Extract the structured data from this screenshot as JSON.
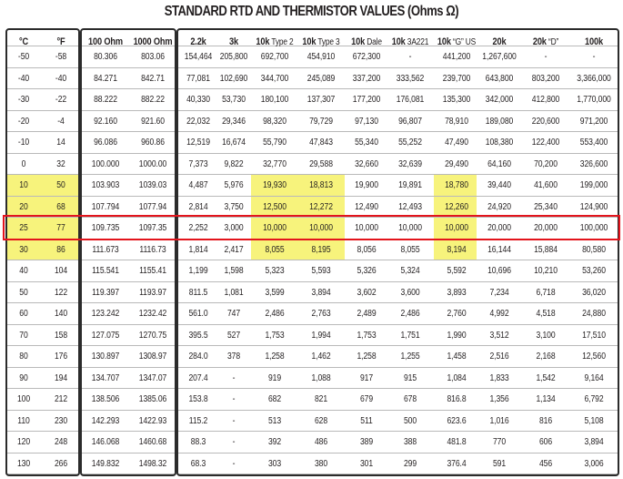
{
  "title": "STANDARD RTD AND THERMISTOR VALUES (Ohms Ω)",
  "columns": [
    {
      "bold": "°C",
      "thin": ""
    },
    {
      "bold": "°F",
      "thin": ""
    },
    {
      "bold": "100 Ohm",
      "thin": ""
    },
    {
      "bold": "1000 Ohm",
      "thin": ""
    },
    {
      "bold": "2.2k",
      "thin": ""
    },
    {
      "bold": "3k",
      "thin": ""
    },
    {
      "bold": "10k",
      "thin": "Type 2"
    },
    {
      "bold": "10k",
      "thin": "Type 3"
    },
    {
      "bold": "10k",
      "thin": "Dale"
    },
    {
      "bold": "10k",
      "thin": "3A221"
    },
    {
      "bold": "10k",
      "thin": "“G” US"
    },
    {
      "bold": "20k",
      "thin": ""
    },
    {
      "bold": "20k",
      "thin": "“D”"
    },
    {
      "bold": "100k",
      "thin": ""
    }
  ],
  "rows": [
    [
      "-50",
      "-58",
      "80.306",
      "803.06",
      "154,464",
      "205,800",
      "692,700",
      "454,910",
      "672,300",
      "-",
      "441,200",
      "1,267,600",
      "-",
      "-"
    ],
    [
      "-40",
      "-40",
      "84.271",
      "842.71",
      "77,081",
      "102,690",
      "344,700",
      "245,089",
      "337,200",
      "333,562",
      "239,700",
      "643,800",
      "803,200",
      "3,366,000"
    ],
    [
      "-30",
      "-22",
      "88.222",
      "882.22",
      "40,330",
      "53,730",
      "180,100",
      "137,307",
      "177,200",
      "176,081",
      "135,300",
      "342,000",
      "412,800",
      "1,770,000"
    ],
    [
      "-20",
      "-4",
      "92.160",
      "921.60",
      "22,032",
      "29,346",
      "98,320",
      "79,729",
      "97,130",
      "96,807",
      "78,910",
      "189,080",
      "220,600",
      "971,200"
    ],
    [
      "-10",
      "14",
      "96.086",
      "960.86",
      "12,519",
      "16,674",
      "55,790",
      "47,843",
      "55,340",
      "55,252",
      "47,490",
      "108,380",
      "122,400",
      "553,400"
    ],
    [
      "0",
      "32",
      "100.000",
      "1000.00",
      "7,373",
      "9,822",
      "32,770",
      "29,588",
      "32,660",
      "32,639",
      "29,490",
      "64,160",
      "70,200",
      "326,600"
    ],
    [
      "10",
      "50",
      "103.903",
      "1039.03",
      "4,487",
      "5,976",
      "19,930",
      "18,813",
      "19,900",
      "19,891",
      "18,780",
      "39,440",
      "41,600",
      "199,000"
    ],
    [
      "20",
      "68",
      "107.794",
      "1077.94",
      "2,814",
      "3,750",
      "12,500",
      "12,272",
      "12,490",
      "12,493",
      "12,260",
      "24,920",
      "25,340",
      "124,900"
    ],
    [
      "25",
      "77",
      "109.735",
      "1097.35",
      "2,252",
      "3,000",
      "10,000",
      "10,000",
      "10,000",
      "10,000",
      "10,000",
      "20,000",
      "20,000",
      "100,000"
    ],
    [
      "30",
      "86",
      "111.673",
      "1116.73",
      "1,814",
      "2,417",
      "8,055",
      "8,195",
      "8,056",
      "8,055",
      "8,194",
      "16,144",
      "15,884",
      "80,580"
    ],
    [
      "40",
      "104",
      "115.541",
      "1155.41",
      "1,199",
      "1,598",
      "5,323",
      "5,593",
      "5,326",
      "5,324",
      "5,592",
      "10,696",
      "10,210",
      "53,260"
    ],
    [
      "50",
      "122",
      "119.397",
      "1193.97",
      "811.5",
      "1,081",
      "3,599",
      "3,894",
      "3,602",
      "3,600",
      "3,893",
      "7,234",
      "6,718",
      "36,020"
    ],
    [
      "60",
      "140",
      "123.242",
      "1232.42",
      "561.0",
      "747",
      "2,486",
      "2,763",
      "2,489",
      "2,486",
      "2,760",
      "4,992",
      "4,518",
      "24,880"
    ],
    [
      "70",
      "158",
      "127.075",
      "1270.75",
      "395.5",
      "527",
      "1,753",
      "1,994",
      "1,753",
      "1,751",
      "1,990",
      "3,512",
      "3,100",
      "17,510"
    ],
    [
      "80",
      "176",
      "130.897",
      "1308.97",
      "284.0",
      "378",
      "1,258",
      "1,462",
      "1,258",
      "1,255",
      "1,458",
      "2,516",
      "2,168",
      "12,560"
    ],
    [
      "90",
      "194",
      "134.707",
      "1347.07",
      "207.4",
      "-",
      "919",
      "1,088",
      "917",
      "915",
      "1,084",
      "1,833",
      "1,542",
      "9,164"
    ],
    [
      "100",
      "212",
      "138.506",
      "1385.06",
      "153.8",
      "-",
      "682",
      "821",
      "679",
      "678",
      "816.8",
      "1,356",
      "1,134",
      "6,792"
    ],
    [
      "110",
      "230",
      "142.293",
      "1422.93",
      "115.2",
      "-",
      "513",
      "628",
      "511",
      "500",
      "623.6",
      "1,016",
      "816",
      "5,108"
    ],
    [
      "120",
      "248",
      "146.068",
      "1460.68",
      "88.3",
      "-",
      "392",
      "486",
      "389",
      "388",
      "481.8",
      "770",
      "606",
      "3,894"
    ],
    [
      "130",
      "266",
      "149.832",
      "1498.32",
      "68.3",
      "-",
      "303",
      "380",
      "301",
      "299",
      "376.4",
      "591",
      "456",
      "3,006"
    ]
  ],
  "colors": {
    "highlight": "#f7f37c",
    "reference_outline": "#e3141c",
    "group_border": "#2b2b2b",
    "row_rule": "#b9b9b9"
  }
}
